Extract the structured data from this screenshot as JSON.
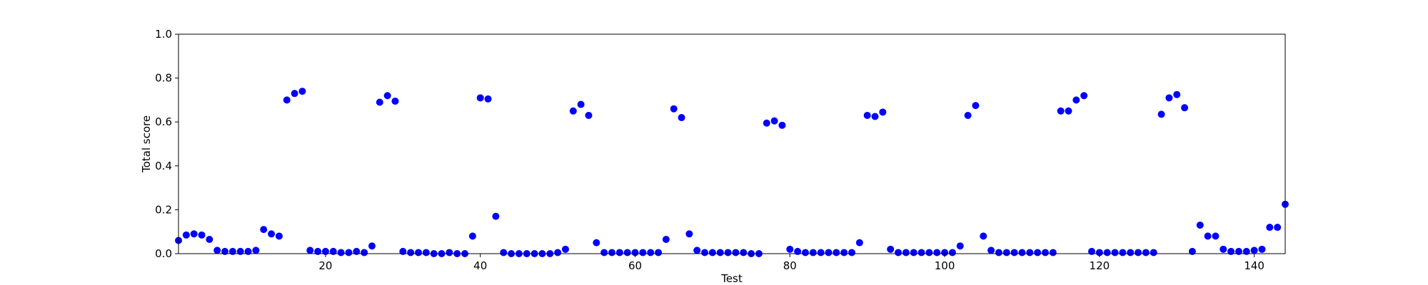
{
  "chart_data": {
    "type": "scatter",
    "title": "",
    "xlabel": "Test",
    "ylabel": "Total score",
    "xlim": [
      1,
      144
    ],
    "ylim": [
      0.0,
      1.0
    ],
    "grid": false,
    "legend": "none",
    "marker_color": "#0000ff",
    "x_ticks": [
      20,
      40,
      60,
      80,
      100,
      120,
      140
    ],
    "x_tick_labels": [
      "20",
      "40",
      "60",
      "80",
      "100",
      "120",
      "140"
    ],
    "y_ticks": [
      0.0,
      0.2,
      0.4,
      0.6,
      0.8,
      1.0
    ],
    "y_tick_labels": [
      "0.0",
      "0.2",
      "0.4",
      "0.6",
      "0.8",
      "1.0"
    ],
    "series": [
      {
        "x": [
          1,
          2,
          3,
          4,
          5,
          6,
          7,
          8,
          9,
          10,
          11,
          12,
          13,
          14,
          15,
          16,
          17,
          18,
          19,
          20,
          21,
          22,
          23,
          24,
          25,
          26,
          27,
          28,
          29,
          30,
          31,
          32,
          33,
          34,
          35,
          36,
          37,
          38,
          39,
          40,
          41,
          42,
          43,
          44,
          45,
          46,
          47,
          48,
          49,
          50,
          51,
          52,
          53,
          54,
          55,
          56,
          57,
          58,
          59,
          60,
          61,
          62,
          63,
          64,
          65,
          66,
          67,
          68,
          69,
          70,
          71,
          72,
          73,
          74,
          75,
          76,
          77,
          78,
          79,
          80,
          81,
          82,
          83,
          84,
          85,
          86,
          87,
          88,
          89,
          90,
          91,
          92,
          93,
          94,
          95,
          96,
          97,
          98,
          99,
          100,
          101,
          102,
          103,
          104,
          105,
          106,
          107,
          108,
          109,
          110,
          111,
          112,
          113,
          114,
          115,
          116,
          117,
          118,
          119,
          120,
          121,
          122,
          123,
          124,
          125,
          126,
          127,
          128,
          129,
          130,
          131,
          132,
          133,
          134,
          135,
          136,
          137,
          138,
          139,
          140,
          141,
          142,
          143,
          144
        ],
        "y": [
          0.06,
          0.085,
          0.09,
          0.085,
          0.065,
          0.015,
          0.01,
          0.01,
          0.01,
          0.01,
          0.015,
          0.11,
          0.09,
          0.08,
          0.7,
          0.73,
          0.74,
          0.015,
          0.01,
          0.01,
          0.01,
          0.005,
          0.005,
          0.01,
          0.005,
          0.035,
          0.69,
          0.72,
          0.695,
          0.01,
          0.005,
          0.005,
          0.005,
          0.0,
          0.0,
          0.005,
          0.0,
          0.0,
          0.08,
          0.71,
          0.705,
          0.17,
          0.005,
          0.0,
          0.0,
          0.0,
          0.0,
          0.0,
          0.0,
          0.005,
          0.02,
          0.65,
          0.68,
          0.63,
          0.05,
          0.005,
          0.005,
          0.005,
          0.005,
          0.005,
          0.005,
          0.005,
          0.005,
          0.065,
          0.66,
          0.62,
          0.09,
          0.015,
          0.005,
          0.005,
          0.005,
          0.005,
          0.005,
          0.005,
          0.0,
          0.0,
          0.595,
          0.605,
          0.585,
          0.02,
          0.01,
          0.005,
          0.005,
          0.005,
          0.005,
          0.005,
          0.005,
          0.005,
          0.05,
          0.63,
          0.625,
          0.645,
          0.02,
          0.005,
          0.005,
          0.005,
          0.005,
          0.005,
          0.005,
          0.005,
          0.005,
          0.035,
          0.63,
          0.675,
          0.08,
          0.015,
          0.005,
          0.005,
          0.005,
          0.005,
          0.005,
          0.005,
          0.005,
          0.005,
          0.65,
          0.65,
          0.7,
          0.72,
          0.01,
          0.005,
          0.005,
          0.005,
          0.005,
          0.005,
          0.005,
          0.005,
          0.005,
          0.635,
          0.71,
          0.725,
          0.665,
          0.01,
          0.13,
          0.08,
          0.08,
          0.02,
          0.01,
          0.01,
          0.01,
          0.015,
          0.02,
          0.12,
          0.12,
          0.225
        ]
      }
    ]
  }
}
